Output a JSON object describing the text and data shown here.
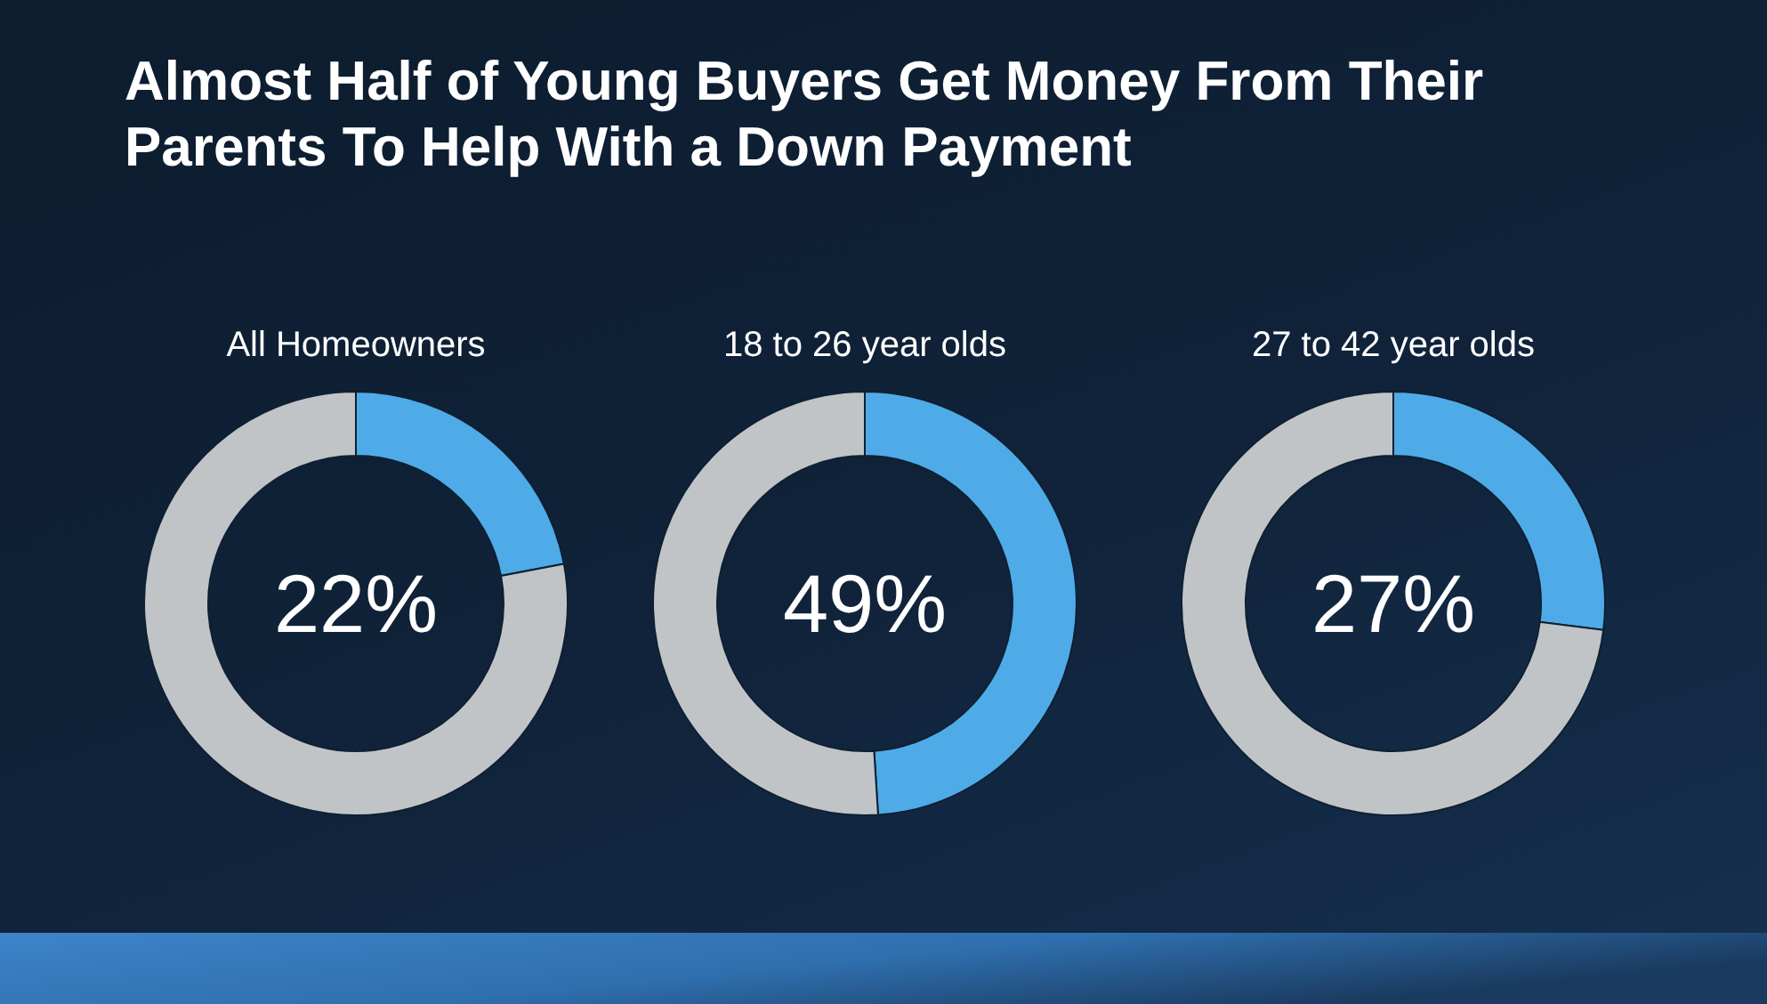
{
  "chart_data": [
    {
      "type": "other",
      "title": "Almost Half of Young Buyers Get Money From Their Parents To Help With a Down Payment"
    },
    {
      "type": "donut",
      "title": "All Homeowners",
      "categories": [
        null,
        null
      ],
      "values": [
        22,
        78
      ],
      "colors": [
        "#4eabe8",
        "#c1c4c6"
      ],
      "annotations": [
        "22%"
      ]
    },
    {
      "type": "donut",
      "title": "18 to 26 year olds",
      "categories": [
        null,
        null
      ],
      "values": [
        49,
        51
      ],
      "colors": [
        "#4eabe8",
        "#c1c4c6"
      ],
      "annotations": [
        "49%"
      ]
    },
    {
      "type": "donut",
      "title": "27 to 42 year olds",
      "categories": [
        null,
        null
      ],
      "values": [
        27,
        73
      ],
      "colors": [
        "#4eabe8",
        "#c1c4c6"
      ],
      "annotations": [
        "27%"
      ]
    }
  ]
}
